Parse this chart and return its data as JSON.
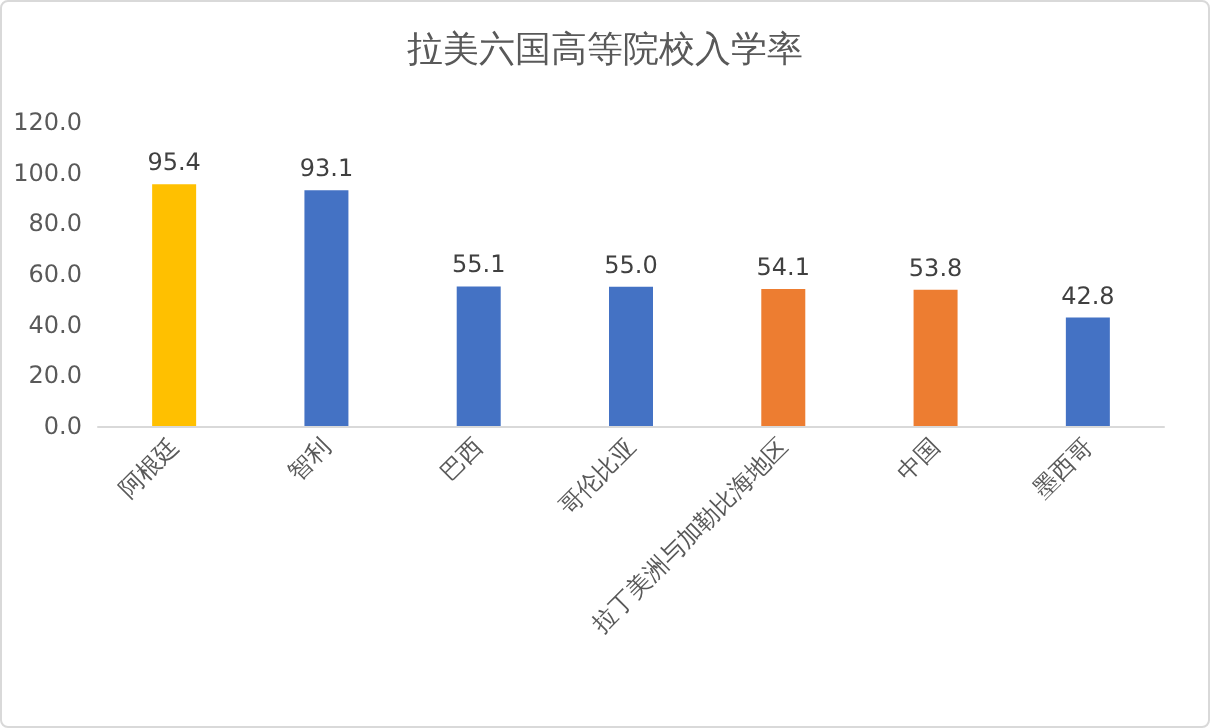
{
  "chart_data": {
    "type": "bar",
    "title": "拉美六国高等院校入学率",
    "categories": [
      "阿根廷",
      "智利",
      "巴西",
      "哥伦比亚",
      "拉丁美洲与加勒比海地区",
      "中国",
      "墨西哥"
    ],
    "values": [
      95.4,
      93.1,
      55.1,
      55.0,
      54.1,
      53.8,
      42.8
    ],
    "colors": [
      "#ffc000",
      "#4472c4",
      "#4472c4",
      "#4472c4",
      "#ed7d31",
      "#ed7d31",
      "#4472c4"
    ],
    "value_labels": [
      "95.4",
      "93.1",
      "55.1",
      "55.0",
      "54.1",
      "53.8",
      "42.8"
    ],
    "ylim": [
      0,
      120
    ],
    "yticks": [
      {
        "value": 0,
        "label": "0.0"
      },
      {
        "value": 20,
        "label": "20.0"
      },
      {
        "value": 40,
        "label": "40.0"
      },
      {
        "value": 60,
        "label": "60.0"
      },
      {
        "value": 80,
        "label": "80.0"
      },
      {
        "value": 100,
        "label": "100.0"
      },
      {
        "value": 120,
        "label": "120.0"
      }
    ],
    "grid": false
  }
}
